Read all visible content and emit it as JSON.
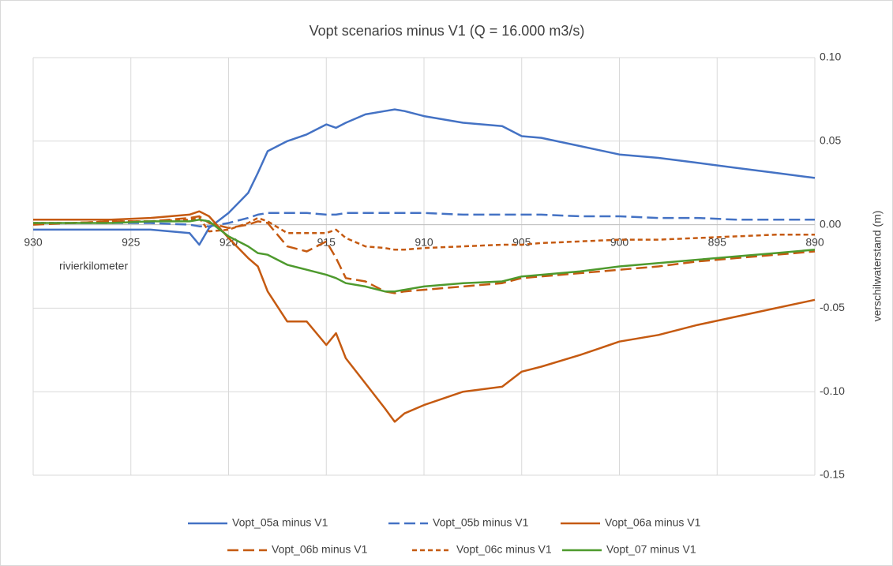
{
  "chart_data": {
    "type": "line",
    "title": "Vopt scenarios minus V1 (Q = 16.000 m3/s)",
    "x_label": "rivierkilometer",
    "y_label": "verschilwaterstand (m)",
    "x": [
      930,
      928,
      926,
      924,
      922,
      921.5,
      921,
      920,
      919,
      918.5,
      918,
      917,
      916,
      915,
      914.5,
      914,
      913,
      912,
      911.5,
      911,
      910,
      908,
      906,
      905,
      904,
      902,
      900,
      898,
      896,
      894,
      892,
      890
    ],
    "xlim": [
      930,
      890
    ],
    "xticks": [
      930,
      925,
      920,
      915,
      910,
      905,
      900,
      895,
      890
    ],
    "ylim": [
      -0.15,
      0.1
    ],
    "yticks": [
      {
        "value": 0.1,
        "label": "0.10"
      },
      {
        "value": 0.05,
        "label": "0.05"
      },
      {
        "value": 0,
        "label": "0.00"
      },
      {
        "value": -0.05,
        "label": "-0.05"
      },
      {
        "value": -0.1,
        "label": "-0.10"
      },
      {
        "value": -0.15,
        "label": "-0.15"
      }
    ],
    "y_axis_side": "right",
    "grid": true,
    "legend": "bottom",
    "series": [
      {
        "name": "Vopt_05a minus V1",
        "color": "#4472c4",
        "dash": "solid",
        "values": [
          -0.003,
          -0.003,
          -0.003,
          -0.003,
          -0.005,
          -0.012,
          -0.002,
          0.007,
          0.019,
          0.031,
          0.044,
          0.05,
          0.054,
          0.06,
          0.058,
          0.061,
          0.066,
          0.068,
          0.069,
          0.068,
          0.065,
          0.061,
          0.059,
          0.053,
          0.052,
          0.047,
          0.042,
          0.04,
          0.037,
          0.034,
          0.031,
          0.028
        ]
      },
      {
        "name": "Vopt_05b minus V1",
        "color": "#4472c4",
        "dash": "long-dash",
        "values": [
          0.001,
          0.001,
          0.001,
          0.001,
          0.0,
          -0.001,
          -0.001,
          0.001,
          0.004,
          0.006,
          0.007,
          0.007,
          0.007,
          0.006,
          0.006,
          0.007,
          0.007,
          0.007,
          0.007,
          0.007,
          0.007,
          0.006,
          0.006,
          0.006,
          0.006,
          0.005,
          0.005,
          0.004,
          0.004,
          0.003,
          0.003,
          0.003
        ]
      },
      {
        "name": "Vopt_06a minus V1",
        "color": "#c55a11",
        "dash": "solid",
        "values": [
          0.003,
          0.003,
          0.003,
          0.004,
          0.006,
          0.008,
          0.005,
          -0.008,
          -0.02,
          -0.025,
          -0.04,
          -0.058,
          -0.058,
          -0.072,
          -0.065,
          -0.08,
          -0.095,
          -0.11,
          -0.118,
          -0.113,
          -0.108,
          -0.1,
          -0.097,
          -0.088,
          -0.085,
          -0.078,
          -0.07,
          -0.066,
          -0.06,
          -0.055,
          -0.05,
          -0.045
        ]
      },
      {
        "name": "Vopt_06b minus V1",
        "color": "#c55a11",
        "dash": "long-dash",
        "values": [
          0.0,
          0.001,
          0.002,
          0.002,
          0.004,
          0.005,
          0.001,
          -0.002,
          0.0,
          0.002,
          0.001,
          -0.013,
          -0.016,
          -0.01,
          -0.02,
          -0.032,
          -0.034,
          -0.04,
          -0.041,
          -0.04,
          -0.039,
          -0.037,
          -0.035,
          -0.032,
          -0.031,
          -0.029,
          -0.027,
          -0.025,
          -0.022,
          -0.02,
          -0.018,
          -0.016
        ]
      },
      {
        "name": "Vopt_06c minus V1",
        "color": "#c55a11",
        "dash": "short-dash",
        "values": [
          0.001,
          0.001,
          0.002,
          0.002,
          0.003,
          0.004,
          -0.004,
          -0.003,
          0.001,
          0.004,
          0.002,
          -0.005,
          -0.005,
          -0.005,
          -0.003,
          -0.008,
          -0.013,
          -0.014,
          -0.015,
          -0.015,
          -0.014,
          -0.013,
          -0.012,
          -0.012,
          -0.011,
          -0.01,
          -0.009,
          -0.009,
          -0.008,
          -0.007,
          -0.006,
          -0.006
        ]
      },
      {
        "name": "Vopt_07 minus V1",
        "color": "#4e9a2e",
        "dash": "solid",
        "values": [
          0.001,
          0.001,
          0.001,
          0.002,
          0.002,
          0.003,
          0.002,
          -0.007,
          -0.013,
          -0.017,
          -0.018,
          -0.024,
          -0.027,
          -0.03,
          -0.032,
          -0.035,
          -0.037,
          -0.04,
          -0.04,
          -0.039,
          -0.037,
          -0.035,
          -0.034,
          -0.031,
          -0.03,
          -0.028,
          -0.025,
          -0.023,
          -0.021,
          -0.019,
          -0.017,
          -0.015
        ]
      }
    ]
  }
}
